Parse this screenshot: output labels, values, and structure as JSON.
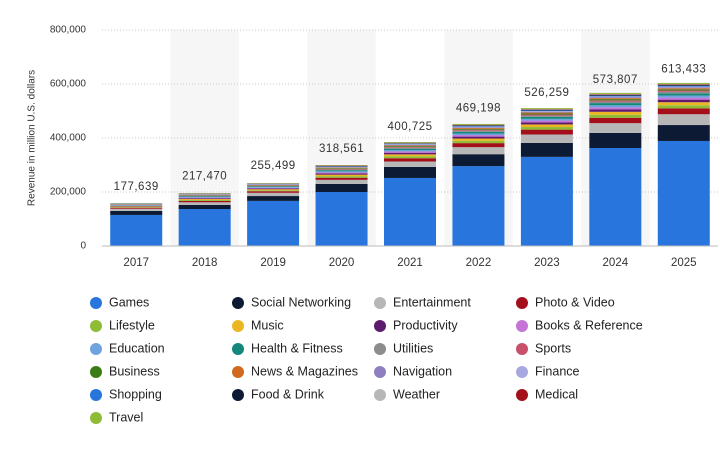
{
  "chart_data": {
    "type": "stacked_bar",
    "y_label": "Revenue in million U.S. dollars",
    "categories": [
      "2017",
      "2018",
      "2019",
      "2020",
      "2021",
      "2022",
      "2023",
      "2024",
      "2025"
    ],
    "ylim": [
      0,
      800000
    ],
    "yticks": [
      0,
      {
        "value": 200000,
        "label": "200,000"
      },
      {
        "value": 400000,
        "label": "400,000"
      },
      {
        "value": 600000,
        "label": "600,000"
      },
      {
        "value": 800000,
        "label": "800,000"
      }
    ],
    "grid": true,
    "totals": {
      "values": [
        177639,
        217470,
        255499,
        318561,
        400725,
        469198,
        526259,
        573807,
        613433
      ],
      "value_labels": [
        "177,639",
        "217,470",
        "255,499",
        "318,561",
        "400,725",
        "469,198",
        "526,259",
        "573,807",
        "613,433"
      ]
    },
    "series": [
      {
        "name": "Games",
        "color": "#2876dd",
        "values": [
          115000,
          137000,
          167000,
          200000,
          252000,
          296000,
          330000,
          363000,
          389000
        ]
      },
      {
        "name": "Social Networking",
        "color": "#0c1b33",
        "values": [
          15000,
          15000,
          18000,
          30000,
          41000,
          44000,
          52000,
          56000,
          59000
        ]
      },
      {
        "name": "Entertainment",
        "color": "#b7b7b7",
        "values": [
          8000,
          10000,
          12000,
          15000,
          20000,
          26000,
          31000,
          36000,
          40000
        ]
      },
      {
        "name": "Photo & Video",
        "color": "#a30f1a",
        "values": [
          4000,
          5000,
          6000,
          8000,
          12000,
          15000,
          18000,
          20000,
          22000
        ]
      },
      {
        "name": "Lifestyle",
        "color": "#8fbc35",
        "values": [
          2040,
          3480,
          3600,
          5640,
          7200,
          8520,
          9600,
          11040,
          11280
        ]
      },
      {
        "name": "Music",
        "color": "#ecb623",
        "values": [
          2040,
          3480,
          3600,
          5640,
          7200,
          8520,
          9600,
          11040,
          11280
        ]
      },
      {
        "name": "Productivity",
        "color": "#5e1a6e",
        "values": [
          1700,
          2900,
          3000,
          4700,
          6000,
          7100,
          8000,
          9200,
          9400
        ]
      },
      {
        "name": "Books & Reference",
        "color": "#c474d6",
        "values": [
          1360,
          2320,
          2400,
          3760,
          4800,
          5680,
          6400,
          7360,
          7520
        ]
      },
      {
        "name": "Education",
        "color": "#6fa3df",
        "values": [
          1360,
          2320,
          2400,
          3760,
          4800,
          5680,
          6400,
          7360,
          7520
        ]
      },
      {
        "name": "Health & Fitness",
        "color": "#14897b",
        "values": [
          1530,
          2610,
          2700,
          4230,
          5400,
          6390,
          7200,
          8280,
          8460
        ]
      },
      {
        "name": "Utilities",
        "color": "#8c8c8c",
        "values": [
          1020,
          1740,
          1800,
          2820,
          3600,
          4260,
          4800,
          5520,
          5640
        ]
      },
      {
        "name": "Sports",
        "color": "#c8506b",
        "values": [
          850,
          1450,
          1500,
          2350,
          3000,
          3550,
          4000,
          4600,
          4700
        ]
      },
      {
        "name": "Business",
        "color": "#3a7d17",
        "values": [
          850,
          1450,
          1500,
          2350,
          3000,
          3550,
          4000,
          4600,
          4700
        ]
      },
      {
        "name": "News & Magazines",
        "color": "#d2691e",
        "values": [
          680,
          1160,
          1200,
          1880,
          2400,
          2840,
          3200,
          3680,
          3760
        ]
      },
      {
        "name": "Navigation",
        "color": "#8f7fc0",
        "values": [
          680,
          1160,
          1200,
          1880,
          2400,
          2840,
          3200,
          3680,
          3760
        ]
      },
      {
        "name": "Finance",
        "color": "#a7a9de",
        "values": [
          510,
          870,
          900,
          1410,
          1800,
          2130,
          2400,
          2760,
          2820
        ]
      },
      {
        "name": "Shopping",
        "color": "#2876dd",
        "values": [
          510,
          870,
          900,
          1410,
          1800,
          2130,
          2400,
          2760,
          2820
        ]
      },
      {
        "name": "Food & Drink",
        "color": "#0c1b33",
        "values": [
          510,
          870,
          900,
          1410,
          1800,
          2130,
          2400,
          2760,
          2820
        ]
      },
      {
        "name": "Weather",
        "color": "#b7b7b7",
        "values": [
          340,
          580,
          600,
          940,
          1200,
          1420,
          1600,
          1840,
          1880
        ]
      },
      {
        "name": "Medical",
        "color": "#a30f1a",
        "values": [
          340,
          580,
          600,
          940,
          1200,
          1420,
          1600,
          1840,
          1880
        ]
      },
      {
        "name": "Travel",
        "color": "#8fbc35",
        "values": [
          680,
          1160,
          1200,
          1880,
          2400,
          2840,
          3200,
          3680,
          3760
        ]
      }
    ]
  }
}
